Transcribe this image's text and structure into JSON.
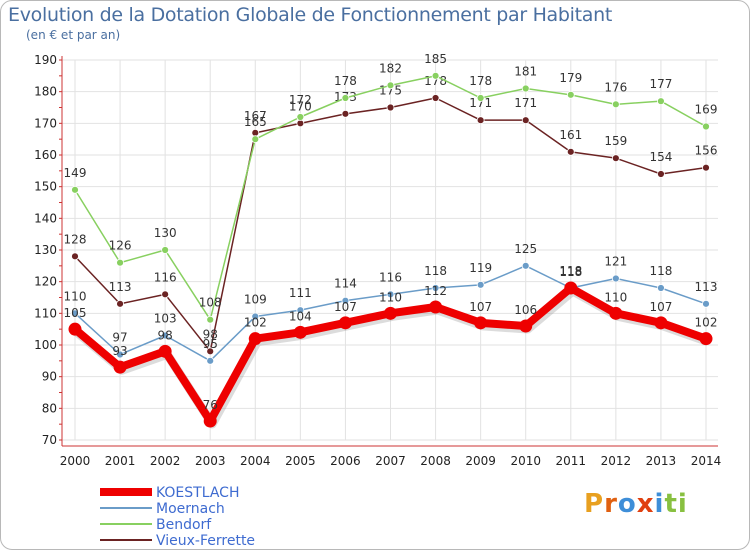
{
  "chart_data": {
    "type": "line",
    "title": "Evolution de la Dotation Globale de Fonctionnement par Habitant",
    "subtitle": "(en € et par an)",
    "xlabel": "",
    "ylabel": "",
    "ylim": [
      70,
      190
    ],
    "yticks": [
      70,
      80,
      90,
      100,
      110,
      120,
      130,
      140,
      150,
      160,
      170,
      180,
      190
    ],
    "grid": true,
    "legend_position": "bottom-left",
    "x": [
      "2000",
      "2001",
      "2002",
      "2003",
      "2004",
      "2005",
      "2006",
      "2007",
      "2008",
      "2009",
      "2010",
      "2011",
      "2012",
      "2013",
      "2014"
    ],
    "series": [
      {
        "name": "Vieux-Ferrette",
        "color": "#6b2323",
        "values": [
          128,
          113,
          116,
          98,
          167,
          170,
          173,
          175,
          178,
          171,
          171,
          161,
          159,
          154,
          156
        ]
      },
      {
        "name": "Bendorf",
        "color": "#88d060",
        "values": [
          149,
          126,
          130,
          108,
          165,
          172,
          178,
          182,
          185,
          178,
          181,
          179,
          176,
          177,
          169
        ]
      },
      {
        "name": "Moernach",
        "color": "#6a9cc8",
        "values": [
          110,
          97,
          103,
          95,
          109,
          111,
          114,
          116,
          118,
          119,
          125,
          118,
          121,
          118,
          113
        ]
      },
      {
        "name": "KOESTLACH",
        "color": "#ee0000",
        "values": [
          105,
          93,
          98,
          76,
          102,
          104,
          107,
          110,
          112,
          107,
          106,
          118,
          110,
          107,
          102
        ]
      }
    ]
  },
  "legend": [
    {
      "name": "KOESTLACH",
      "color": "#ee0000"
    },
    {
      "name": "Moernach",
      "color": "#6a9cc8"
    },
    {
      "name": "Bendorf",
      "color": "#88d060"
    },
    {
      "name": "Vieux-Ferrette",
      "color": "#6b2323"
    }
  ],
  "logo": {
    "text": "Proxiti",
    "letters": [
      "P",
      "r",
      "o",
      "x",
      "i",
      "t",
      "i"
    ],
    "colors": [
      "#e8a020",
      "#e06010",
      "#3e8ed8",
      "#e04010",
      "#3e8ed8",
      "#88c040",
      "#88c040"
    ]
  }
}
